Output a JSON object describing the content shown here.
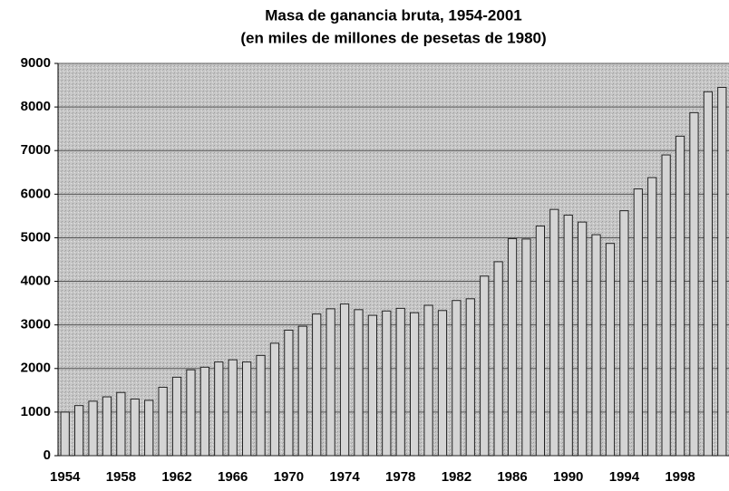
{
  "chart_data": {
    "type": "bar",
    "title": "Masa de ganancia bruta, 1954-2001",
    "subtitle": "(en miles de millones de pesetas de 1980)",
    "categories": [
      "1954",
      null,
      null,
      null,
      "1958",
      null,
      null,
      null,
      "1962",
      null,
      null,
      null,
      "1966",
      null,
      null,
      null,
      "1970",
      null,
      null,
      null,
      "1974",
      null,
      null,
      null,
      "1978",
      null,
      null,
      null,
      "1982",
      null,
      null,
      null,
      "1986",
      null,
      null,
      null,
      "1990",
      null,
      null,
      null,
      "1994",
      null,
      null,
      null,
      "1998",
      null,
      null,
      null
    ],
    "values": [
      1000,
      1150,
      1250,
      1350,
      1450,
      1300,
      1270,
      1570,
      1800,
      1970,
      2030,
      2150,
      2200,
      2150,
      2300,
      2580,
      2880,
      2970,
      3250,
      3370,
      3480,
      3350,
      3220,
      3320,
      3380,
      3280,
      3450,
      3330,
      3560,
      3600,
      4120,
      4450,
      4980,
      4970,
      5270,
      5650,
      5520,
      5360,
      5070,
      4870,
      5620,
      6120,
      6380,
      6900,
      7330,
      7870,
      8350,
      8450
    ],
    "color": "#d4d4d4",
    "ylim": [
      0,
      9000
    ],
    "yticks": [
      0,
      1000,
      2000,
      3000,
      4000,
      5000,
      6000,
      7000,
      8000,
      9000
    ],
    "grid": true
  }
}
